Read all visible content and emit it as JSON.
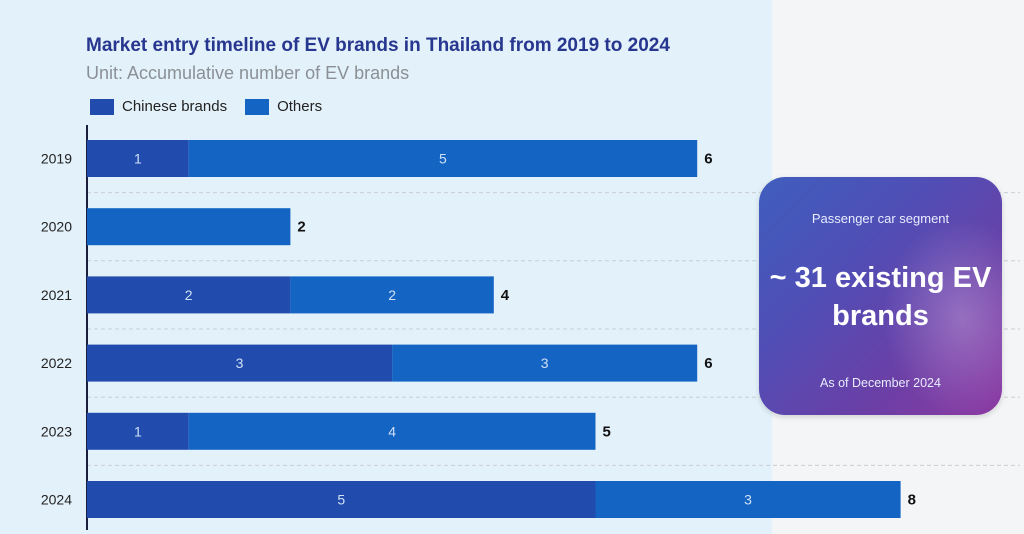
{
  "chart_data": {
    "type": "bar",
    "orientation": "horizontal",
    "stacked": true,
    "title": "Market entry timeline of EV brands in Thailand from 2019 to 2024",
    "subtitle": "Unit: Accumulative number of EV brands",
    "categories": [
      "2019",
      "2020",
      "2021",
      "2022",
      "2023",
      "2024"
    ],
    "series": [
      {
        "name": "Chinese brands",
        "color": "#214cae",
        "values": [
          1,
          0,
          2,
          3,
          1,
          5
        ]
      },
      {
        "name": "Others",
        "color": "#1464c3",
        "values": [
          5,
          2,
          2,
          3,
          4,
          3
        ]
      }
    ],
    "totals": [
      6,
      2,
      4,
      6,
      5,
      8
    ],
    "xlim": [
      0,
      8
    ],
    "legend_position": "top-left"
  },
  "callout": {
    "segment": "Passenger car segment",
    "headline": "~ 31 existing EV brands",
    "date": "As of December 2024"
  }
}
